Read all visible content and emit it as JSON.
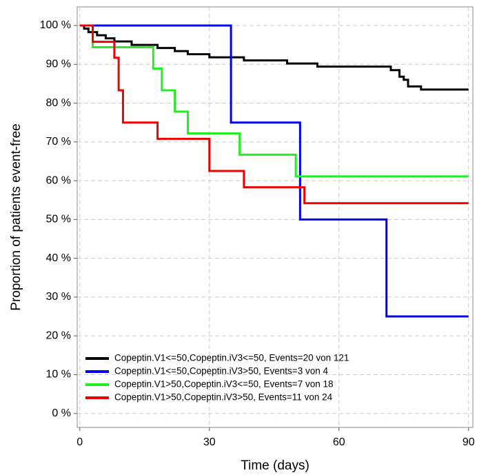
{
  "chart_data": {
    "type": "step",
    "x_label": "Time (days)",
    "y_label": "Proportion of patients event-free",
    "xlim": [
      -0.6,
      91
    ],
    "ylim": [
      -3.6,
      104.8
    ],
    "xticks": [
      0,
      30,
      60,
      90
    ],
    "yticks": [
      {
        "value": 0,
        "label": "0 %"
      },
      {
        "value": 10,
        "label": "10 %"
      },
      {
        "value": 20,
        "label": "20 %"
      },
      {
        "value": 30,
        "label": "30 %"
      },
      {
        "value": 40,
        "label": "40 %"
      },
      {
        "value": 50,
        "label": "50 %"
      },
      {
        "value": 60,
        "label": "60 %"
      },
      {
        "value": 70,
        "label": "70 %"
      },
      {
        "value": 80,
        "label": "80 %"
      },
      {
        "value": 90,
        "label": "90 %"
      },
      {
        "value": 100,
        "label": "100 %"
      }
    ],
    "grid": true,
    "legend": "bottom-left",
    "series": [
      {
        "name": "Copeptin.V1<=50,Copeptin.iV3<=50, Events=20 von 121",
        "color": "#000000",
        "x": [
          0,
          1,
          2,
          4,
          6,
          8,
          12,
          18,
          22,
          25,
          30,
          38,
          48,
          55,
          72,
          74,
          75,
          76,
          79,
          90
        ],
        "values": [
          100,
          99.2,
          98.3,
          97.5,
          96.7,
          95.9,
          95,
          94.2,
          93.4,
          92.6,
          91.8,
          91,
          90.2,
          89.4,
          88.5,
          86.8,
          86,
          84.3,
          83.5,
          83.5
        ]
      },
      {
        "name": "Copeptin.V1<=50,Copeptin.iV3>50, Events=3 von 4",
        "color": "#0000ee",
        "x": [
          0,
          35,
          51,
          71,
          90
        ],
        "values": [
          100,
          75,
          50,
          25,
          25
        ]
      },
      {
        "name": "Copeptin.V1>50,Copeptin.iV3<=50, Events=7 von 18",
        "color": "#22ee22",
        "x": [
          0,
          3,
          17,
          19,
          22,
          25,
          37,
          50,
          90
        ],
        "values": [
          100,
          94.4,
          88.9,
          83.3,
          77.8,
          72.2,
          66.7,
          61.1,
          61.1
        ]
      },
      {
        "name": "Copeptin.V1>50,Copeptin.iV3>50, Events=11 von 24",
        "color": "#ee0000",
        "x": [
          0,
          3,
          8,
          9,
          10,
          18,
          30,
          38,
          52,
          90
        ],
        "values": [
          100,
          95.8,
          91.7,
          83.3,
          75,
          70.8,
          62.5,
          58.3,
          54.2,
          54.2
        ]
      }
    ]
  }
}
